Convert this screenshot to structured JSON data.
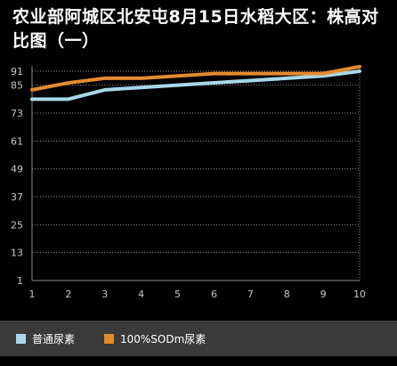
{
  "title": "农业部阿城区北安屯8月15日水稻大区：株高对比图（一）",
  "colors": {
    "series1": "#a8d8ea",
    "series2": "#e58a2e",
    "grid": "#8a8a8a",
    "axis_text": "#c8c8c8"
  },
  "chart_data": {
    "type": "line",
    "title": "农业部阿城区北安屯8月15日水稻大区：株高对比图（一）",
    "x": [
      1,
      2,
      3,
      4,
      5,
      6,
      7,
      8,
      9,
      10
    ],
    "xlim": [
      1,
      10
    ],
    "ylim": [
      1,
      91
    ],
    "yticks": [
      1,
      13,
      25,
      37,
      49,
      61,
      73,
      85,
      91
    ],
    "grid": true,
    "legend_position": "bottom",
    "series": [
      {
        "name": "普通尿素",
        "color": "#a8d8ea",
        "values": [
          79,
          79,
          83,
          84,
          85,
          86,
          87,
          88,
          89,
          91
        ]
      },
      {
        "name": "100%SODm尿素",
        "color": "#e58a2e",
        "values": [
          83,
          86,
          88,
          88,
          89,
          90,
          90,
          90,
          90,
          93
        ]
      }
    ]
  }
}
